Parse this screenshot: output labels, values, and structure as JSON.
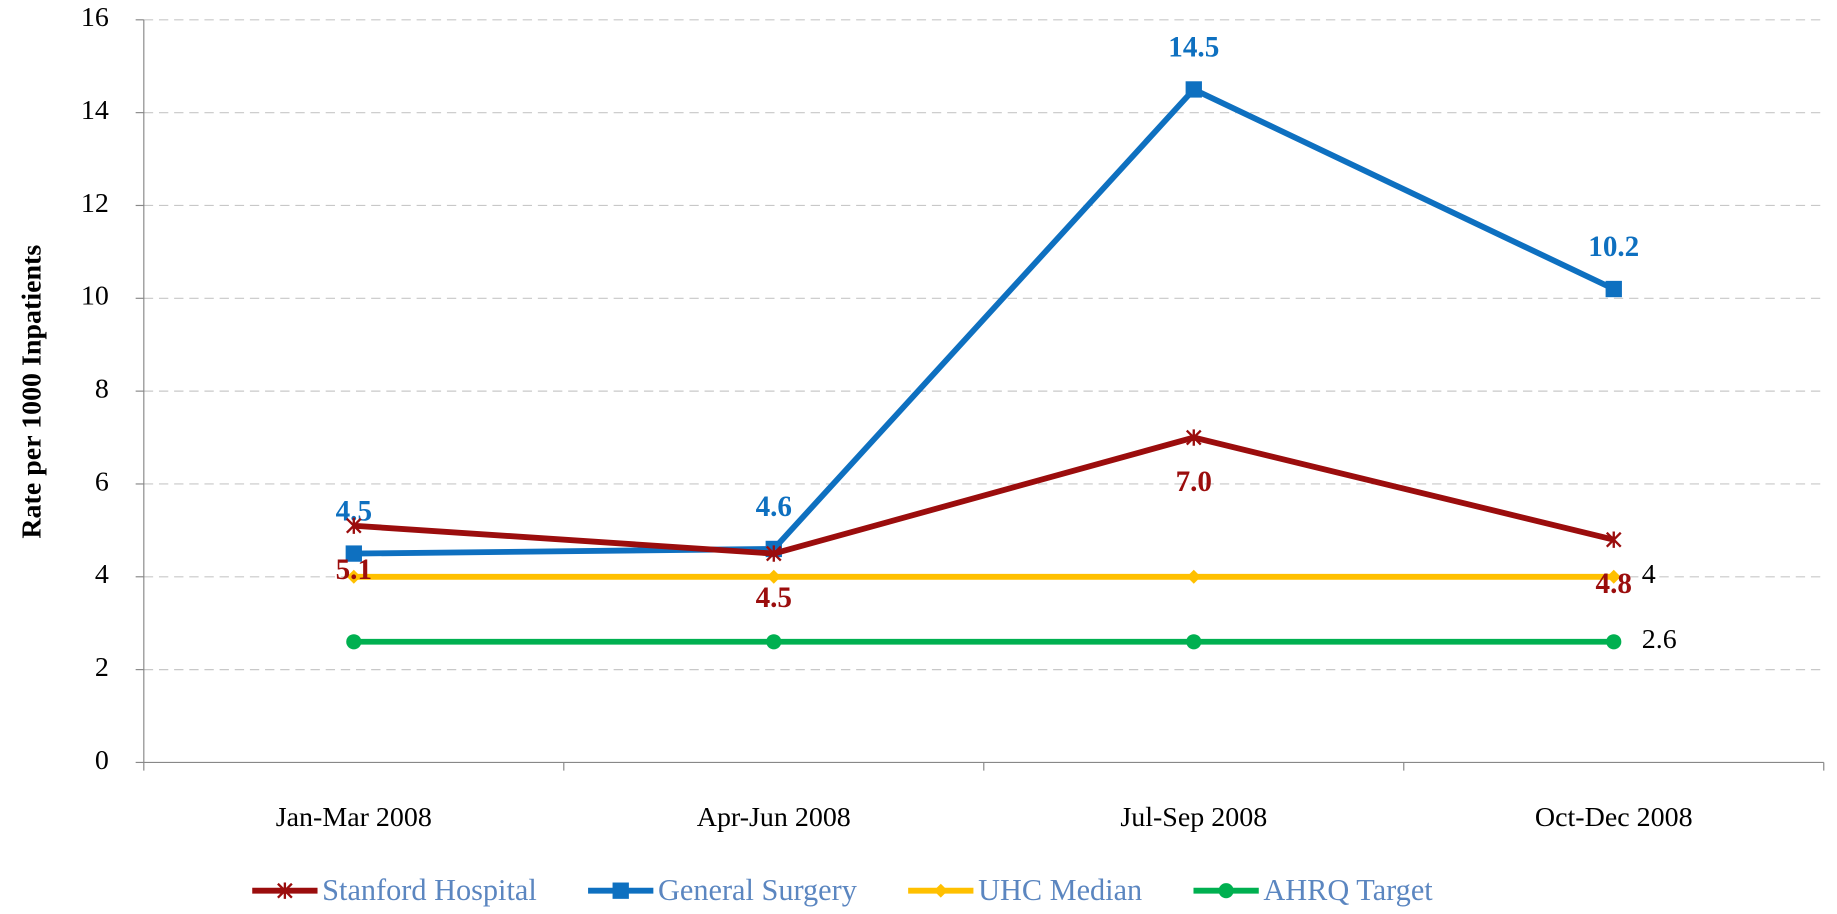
{
  "chart_data": {
    "type": "line",
    "y_label": "Rate per 1000 Inpatients",
    "categories": [
      "Jan-Mar 2008",
      "Apr-Jun 2008",
      "Jul-Sep 2008",
      "Oct-Dec 2008"
    ],
    "series": [
      {
        "name": "Stanford Hospital",
        "color": "#9b0d0d",
        "marker": "star",
        "values": [
          5.1,
          4.5,
          7.0,
          4.8
        ],
        "value_labels": [
          "5.1",
          "4.5",
          "7.0",
          "4.8"
        ],
        "label_position": "below"
      },
      {
        "name": "General Surgery",
        "color": "#0e70c0",
        "marker": "square",
        "values": [
          4.5,
          4.6,
          14.5,
          10.2
        ],
        "data_labels": "all",
        "label_position": "above"
      },
      {
        "name": "UHC Median",
        "color": "#ffc000",
        "marker": "diamond",
        "values": [
          4,
          4,
          4,
          4
        ],
        "data_labels": "last",
        "label_position": "right"
      },
      {
        "name": "AHRQ Target",
        "color": "#00b050",
        "marker": "circle",
        "values": [
          2.6,
          2.6,
          2.6,
          2.6
        ],
        "data_labels": "last",
        "label_position": "right"
      }
    ],
    "ylim": [
      0,
      16
    ],
    "yticks": [
      0,
      2,
      4,
      6,
      8,
      10,
      12,
      14,
      16
    ],
    "grid": true,
    "legend": "bottom"
  }
}
